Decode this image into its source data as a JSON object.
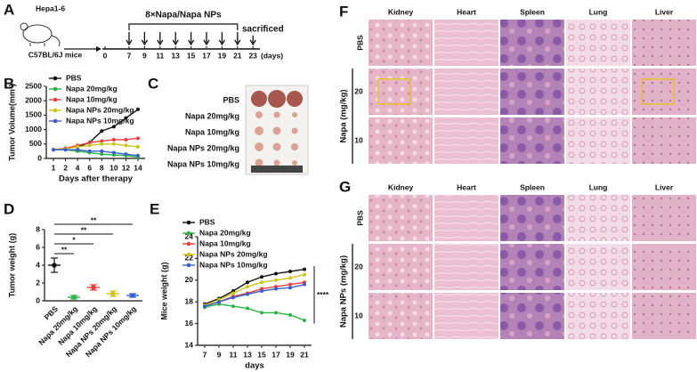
{
  "timeline": {
    "panel": "A",
    "cell_line": "Hepa1-6",
    "mouse": "C57BL/6J mice",
    "treatment": "8×Napa/Napa NPs",
    "endpoint": "sacrificed",
    "days": [
      0,
      7,
      9,
      11,
      13,
      15,
      17,
      19,
      21,
      23
    ],
    "unit": "(days)"
  },
  "chart_data": [
    {
      "type": "line",
      "panel": "B",
      "x_label": "Days after therapy",
      "y_label": "Tumor Volume(mm³)",
      "categories": [
        "1",
        "2",
        "4",
        "6",
        "8",
        "10",
        "12",
        "14"
      ],
      "ylim": [
        0,
        2500
      ],
      "yticks": [
        0,
        500,
        1000,
        1500,
        2000,
        2500
      ],
      "series": [
        {
          "name": "PBS",
          "color": "#111111",
          "values": [
            300,
            350,
            400,
            550,
            950,
            1100,
            1400,
            1700
          ]
        },
        {
          "name": "Napa 20mg/kg",
          "color": "#2fb34a",
          "values": [
            300,
            300,
            250,
            200,
            150,
            120,
            100,
            50
          ]
        },
        {
          "name": "Napa 10mg/kg",
          "color": "#e5423b",
          "values": [
            300,
            350,
            450,
            550,
            600,
            650,
            650,
            700
          ]
        },
        {
          "name": "Napa NPs 20mg/kg",
          "color": "#cfc21a",
          "values": [
            300,
            330,
            400,
            450,
            500,
            500,
            450,
            400
          ]
        },
        {
          "name": "Napa NPs 10mg/kg",
          "color": "#3a5fcd",
          "values": [
            300,
            300,
            300,
            250,
            250,
            200,
            150,
            100
          ]
        }
      ]
    },
    {
      "type": "dot",
      "panel": "D",
      "y_label": "Tumor weight (g)",
      "categories": [
        "PBS",
        "Napa 20mg/kg",
        "Napa 10mg/kg",
        "Napa NPs 20mg/kg",
        "Napa NPs 10mg/kg"
      ],
      "values": [
        4.0,
        0.4,
        1.5,
        0.8,
        0.6
      ],
      "errors": [
        0.8,
        0.2,
        0.3,
        0.3,
        0.2
      ],
      "colors": [
        "#111111",
        "#2fb34a",
        "#e5423b",
        "#cfc21a",
        "#3a5fcd"
      ],
      "ylim": [
        0,
        8
      ],
      "yticks": [
        0,
        2,
        4,
        6,
        8
      ],
      "annotations": [
        "**",
        "**",
        "*",
        "**"
      ]
    },
    {
      "type": "line",
      "panel": "E",
      "x_label": "days",
      "y_label": "Mice weight (g)",
      "categories": [
        "7",
        "9",
        "11",
        "13",
        "15",
        "17",
        "19",
        "21"
      ],
      "ylim": [
        14,
        24
      ],
      "yticks": [
        14,
        16,
        18,
        20,
        22,
        24
      ],
      "annotation": "****",
      "series": [
        {
          "name": "PBS",
          "color": "#111111",
          "values": [
            17.8,
            18.3,
            19,
            19.8,
            20.3,
            20.6,
            20.8,
            21
          ]
        },
        {
          "name": "Napa 20mg/kg",
          "color": "#2fb34a",
          "values": [
            17.5,
            17.8,
            17.6,
            17.4,
            17,
            17,
            16.8,
            16.3
          ]
        },
        {
          "name": "Napa 10mg/kg",
          "color": "#e5423b",
          "values": [
            17.6,
            18,
            18.5,
            18.8,
            19.2,
            19.4,
            19.6,
            19.8
          ]
        },
        {
          "name": "Napa NPs 20mg/kg",
          "color": "#cfc21a",
          "values": [
            17.7,
            18.2,
            18.8,
            19.4,
            19.8,
            20,
            20.2,
            20.5
          ]
        },
        {
          "name": "Napa NPs 10mg/kg",
          "color": "#3a5fcd",
          "values": [
            17.6,
            18,
            18.4,
            18.7,
            19,
            19.2,
            19.3,
            19.6
          ]
        }
      ]
    }
  ],
  "photo": {
    "panel": "C",
    "labels": [
      "PBS",
      "Napa 20mg/kg",
      "Napa 10mg/kg",
      "Napa NPs 20mg/kg",
      "Napa NPs 10mg/kg"
    ]
  },
  "histology": [
    {
      "panel": "F",
      "columns": [
        "Kidney",
        "Heart",
        "Spleen",
        "Lung",
        "Liver"
      ],
      "rows": [
        "PBS",
        "20",
        "10"
      ],
      "group_label": "Napa (mg/kg)"
    },
    {
      "panel": "G",
      "columns": [
        "Kidney",
        "Heart",
        "Spleen",
        "Lung",
        "Liver"
      ],
      "rows": [
        "PBS",
        "20",
        "10"
      ],
      "group_label": "Napa NPs (mg/kg)"
    }
  ]
}
